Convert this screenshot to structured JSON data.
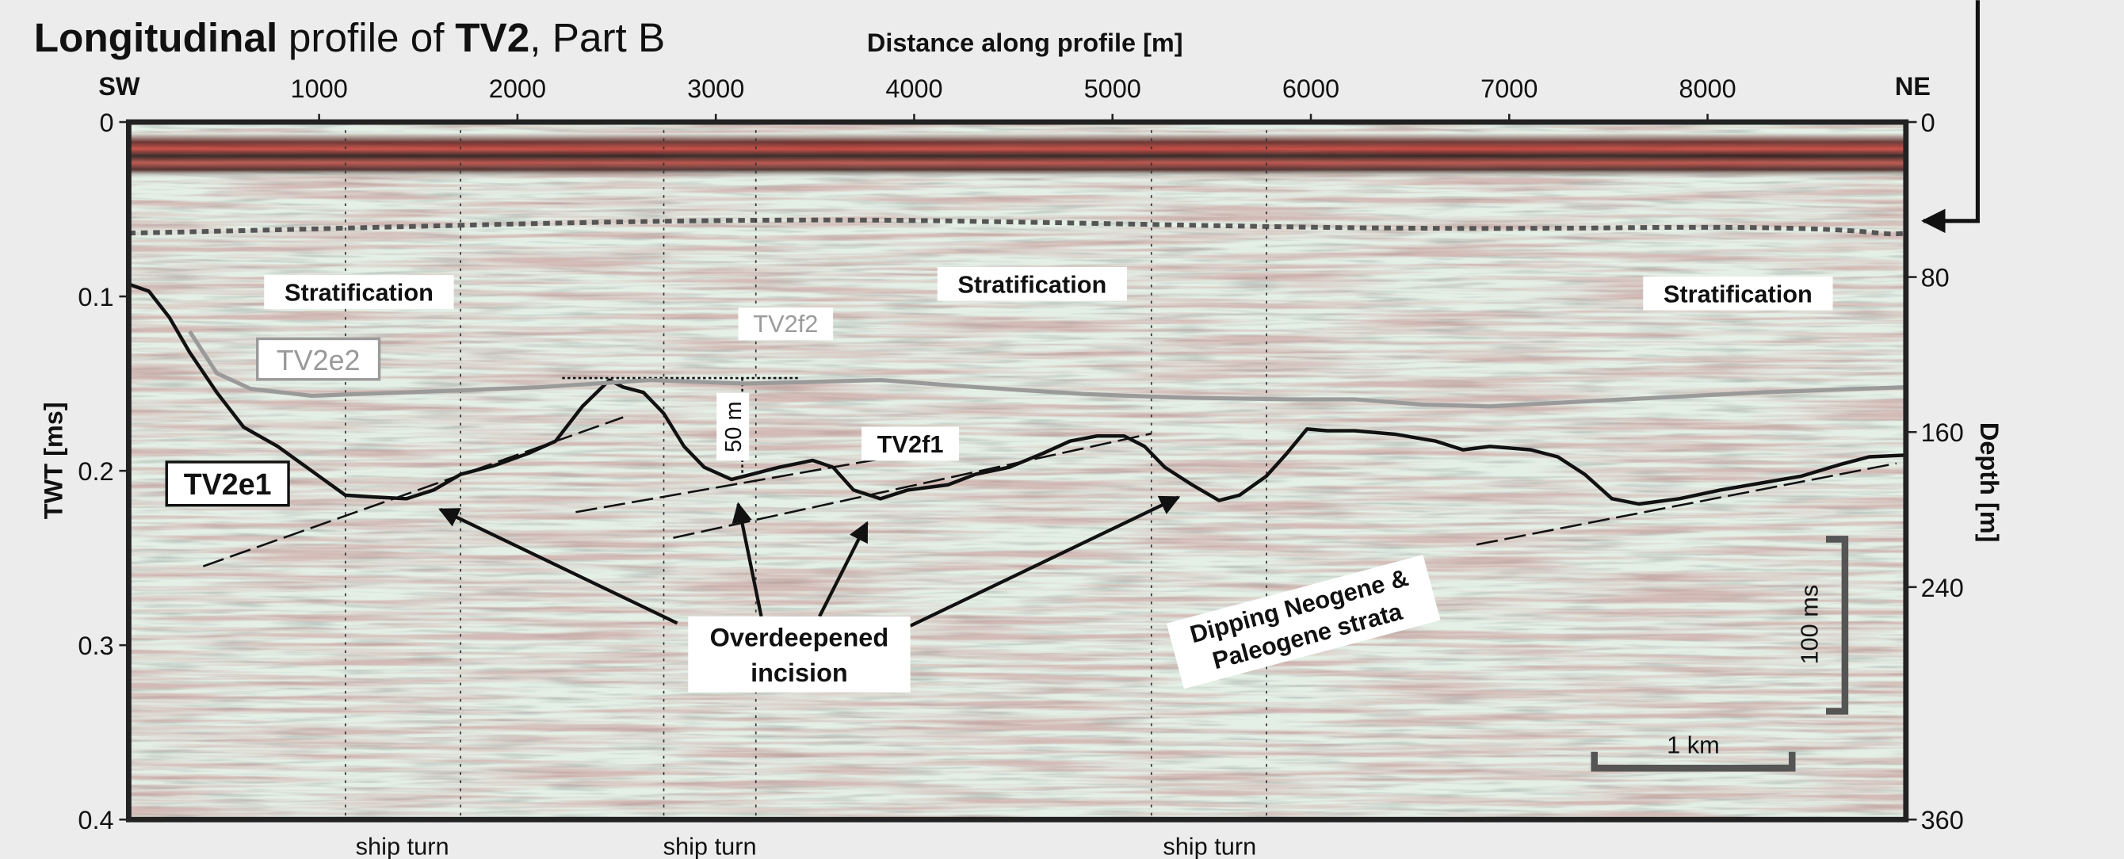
{
  "chart_data": {
    "type": "line",
    "title": [
      "Longitudinal",
      "profile of",
      "TV2",
      ", Part B"
    ],
    "x_label": "Distance along profile [m]",
    "x_left_label": "SW",
    "x_right_label": "NE",
    "xlim": [
      40,
      9000
    ],
    "xticks": [
      1000,
      2000,
      3000,
      4000,
      5000,
      6000,
      7000,
      8000
    ],
    "y_label": "TWT [ms]",
    "ylim": [
      0,
      0.4
    ],
    "yticks": [
      0,
      0.1,
      0.2,
      0.3,
      0.4
    ],
    "y_inverted": true,
    "y2_label": "Depth [m]",
    "y2lim": [
      0,
      360
    ],
    "y2ticks": [
      0,
      80,
      160,
      240,
      360
    ],
    "series": [
      {
        "name": "TV2e1",
        "color": "#111111",
        "x": [
          40,
          142,
          245,
          347,
          484,
          620,
          791,
          962,
          1133,
          1269,
          1440,
          1577,
          1714,
          1884,
          2055,
          2192,
          2328,
          2464,
          2533,
          2635,
          2737,
          2840,
          2942,
          3079,
          3181,
          3318,
          3489,
          3591,
          3694,
          3830,
          3967,
          4172,
          4308,
          4479,
          4650,
          4786,
          4923,
          5059,
          5162,
          5264,
          5401,
          5537,
          5640,
          5776,
          5879,
          5981,
          6083,
          6220,
          6425,
          6630,
          6767,
          6903,
          7108,
          7245,
          7381,
          7518,
          7654,
          7859,
          8064,
          8269,
          8474,
          8679,
          8815,
          9000
        ],
        "values": [
          0.093,
          0.097,
          0.112,
          0.132,
          0.155,
          0.175,
          0.186,
          0.2,
          0.214,
          0.215,
          0.216,
          0.211,
          0.202,
          0.197,
          0.19,
          0.183,
          0.163,
          0.148,
          0.152,
          0.155,
          0.167,
          0.186,
          0.198,
          0.205,
          0.202,
          0.198,
          0.194,
          0.198,
          0.211,
          0.216,
          0.211,
          0.208,
          0.202,
          0.198,
          0.19,
          0.183,
          0.18,
          0.18,
          0.186,
          0.198,
          0.208,
          0.217,
          0.214,
          0.203,
          0.19,
          0.176,
          0.177,
          0.177,
          0.179,
          0.183,
          0.188,
          0.186,
          0.188,
          0.192,
          0.202,
          0.216,
          0.219,
          0.216,
          0.211,
          0.207,
          0.203,
          0.196,
          0.192,
          0.191
        ]
      },
      {
        "name": "TV2e2",
        "color": "#9a9a9a",
        "x": [
          347,
          484,
          655,
          962,
          1440,
          2123,
          2669,
          3147,
          3830,
          4308,
          4854,
          5332,
          5879,
          6220,
          6562,
          6903,
          7586,
          8269,
          9000
        ],
        "values": [
          0.12,
          0.144,
          0.153,
          0.157,
          0.155,
          0.152,
          0.148,
          0.15,
          0.148,
          0.152,
          0.156,
          0.158,
          0.159,
          0.159,
          0.162,
          0.163,
          0.159,
          0.155,
          0.152
        ]
      }
    ],
    "annotations": {
      "stratification": [
        "Stratification",
        "Stratification",
        "Stratification"
      ],
      "tv2f1": "TV2f1",
      "tv2f2": "TV2f2",
      "relief": "50 m",
      "incision": [
        "Overdeepened",
        "incision"
      ],
      "strata": [
        "Dipping Neogene &",
        "Paleogene strata"
      ],
      "ship_turn": [
        "ship turn",
        "ship turn",
        "ship turn"
      ],
      "scale_x": "1 km",
      "scale_y": "100 ms"
    }
  }
}
